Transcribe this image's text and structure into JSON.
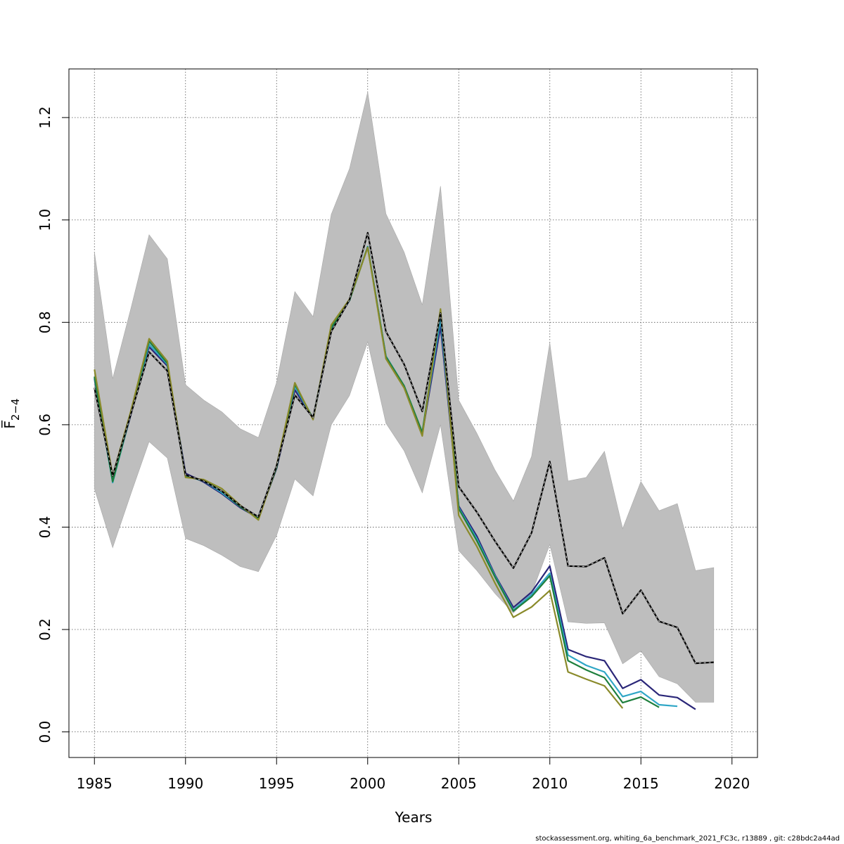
{
  "chart_data": {
    "type": "line",
    "xlabel": "Years",
    "ylabel": "F̅",
    "ylabel_subscript": "2−4",
    "xlim": [
      1983.6,
      2021.4
    ],
    "ylim": [
      -0.05,
      1.295
    ],
    "xticks": [
      1985,
      1990,
      1995,
      2000,
      2005,
      2010,
      2015,
      2020
    ],
    "yticks": [
      0.0,
      0.2,
      0.4,
      0.6,
      0.8,
      1.0,
      1.2
    ],
    "ytick_labels": [
      "0.0",
      "0.2",
      "0.4",
      "0.6",
      "0.8",
      "1.0",
      "1.2"
    ],
    "grid": true,
    "band": {
      "color": "#bebebe",
      "x": [
        1985,
        1986,
        1987,
        1988,
        1989,
        1990,
        1991,
        1992,
        1993,
        1994,
        1995,
        1996,
        1997,
        1998,
        1999,
        2000,
        2001,
        2002,
        2003,
        2004,
        2005,
        2006,
        2007,
        2008,
        2009,
        2010,
        2011,
        2012,
        2013,
        2014,
        2015,
        2016,
        2017,
        2018,
        2019
      ],
      "lower": [
        0.475,
        0.36,
        0.465,
        0.567,
        0.535,
        0.378,
        0.364,
        0.345,
        0.323,
        0.313,
        0.384,
        0.494,
        0.461,
        0.6,
        0.657,
        0.762,
        0.603,
        0.549,
        0.467,
        0.6,
        0.354,
        0.315,
        0.27,
        0.232,
        0.27,
        0.366,
        0.215,
        0.212,
        0.213,
        0.133,
        0.158,
        0.108,
        0.094,
        0.058,
        0.058
      ],
      "upper": [
        0.937,
        0.69,
        0.827,
        0.971,
        0.924,
        0.678,
        0.648,
        0.625,
        0.592,
        0.575,
        0.683,
        0.86,
        0.811,
        1.011,
        1.1,
        1.25,
        1.012,
        0.937,
        0.834,
        1.066,
        0.648,
        0.583,
        0.511,
        0.451,
        0.538,
        0.76,
        0.49,
        0.497,
        0.548,
        0.397,
        0.489,
        0.432,
        0.446,
        0.315,
        0.321
      ]
    },
    "series": [
      {
        "color": "#000000",
        "dashed": true,
        "x": [
          1985,
          1986,
          1987,
          1988,
          1989,
          1990,
          1991,
          1992,
          1993,
          1994,
          1995,
          1996,
          1997,
          1998,
          1999,
          2000,
          2001,
          2002,
          2003,
          2004,
          2005,
          2006,
          2007,
          2008,
          2009,
          2010,
          2011,
          2012,
          2013,
          2014,
          2015,
          2016,
          2017,
          2018,
          2019
        ],
        "values": [
          0.672,
          0.5,
          0.621,
          0.742,
          0.705,
          0.502,
          0.49,
          0.47,
          0.442,
          0.42,
          0.52,
          0.658,
          0.614,
          0.782,
          0.844,
          0.975,
          0.782,
          0.718,
          0.626,
          0.818,
          0.479,
          0.429,
          0.372,
          0.32,
          0.389,
          0.528,
          0.324,
          0.323,
          0.34,
          0.231,
          0.277,
          0.216,
          0.204,
          0.134,
          0.136
        ]
      },
      {
        "color": "#2a2678",
        "x": [
          1985,
          1986,
          1987,
          1988,
          1989,
          1990,
          1991,
          1992,
          1993,
          1994,
          1995,
          1996,
          1997,
          1998,
          1999,
          2000,
          2001,
          2002,
          2003,
          2004,
          2005,
          2006,
          2007,
          2008,
          2009,
          2010,
          2011,
          2012,
          2013,
          2014,
          2015,
          2016,
          2017,
          2018
        ],
        "values": [
          0.69,
          0.49,
          0.62,
          0.752,
          0.715,
          0.505,
          0.488,
          0.465,
          0.438,
          0.418,
          0.515,
          0.668,
          0.612,
          0.785,
          0.843,
          0.948,
          0.733,
          0.675,
          0.582,
          0.792,
          0.441,
          0.382,
          0.306,
          0.243,
          0.273,
          0.324,
          0.161,
          0.147,
          0.139,
          0.085,
          0.102,
          0.072,
          0.067,
          0.044
        ]
      },
      {
        "color": "#2fa6c6",
        "x": [
          1985,
          1986,
          1987,
          1988,
          1989,
          1990,
          1991,
          1992,
          1993,
          1994,
          1995,
          1996,
          1997,
          1998,
          1999,
          2000,
          2001,
          2002,
          2003,
          2004,
          2005,
          2006,
          2007,
          2008,
          2009,
          2010,
          2011,
          2012,
          2013,
          2014,
          2015,
          2016,
          2017
        ],
        "values": [
          0.692,
          0.487,
          0.622,
          0.757,
          0.718,
          0.5,
          0.49,
          0.467,
          0.44,
          0.42,
          0.518,
          0.675,
          0.612,
          0.787,
          0.843,
          0.948,
          0.734,
          0.676,
          0.584,
          0.808,
          0.438,
          0.377,
          0.304,
          0.238,
          0.268,
          0.31,
          0.15,
          0.13,
          0.117,
          0.069,
          0.079,
          0.053,
          0.05
        ]
      },
      {
        "color": "#1e7f3d",
        "x": [
          1985,
          1986,
          1987,
          1988,
          1989,
          1990,
          1991,
          1992,
          1993,
          1994,
          1995,
          1996,
          1997,
          1998,
          1999,
          2000,
          2001,
          2002,
          2003,
          2004,
          2005,
          2006,
          2007,
          2008,
          2009,
          2010,
          2011,
          2012,
          2013,
          2014,
          2015,
          2016
        ],
        "values": [
          0.694,
          0.489,
          0.623,
          0.763,
          0.72,
          0.498,
          0.492,
          0.47,
          0.44,
          0.417,
          0.517,
          0.679,
          0.612,
          0.79,
          0.843,
          0.947,
          0.733,
          0.676,
          0.585,
          0.822,
          0.436,
          0.373,
          0.302,
          0.236,
          0.264,
          0.305,
          0.139,
          0.121,
          0.106,
          0.057,
          0.068,
          0.048
        ]
      },
      {
        "color": "#8a8a2a",
        "x": [
          1985,
          1986,
          1987,
          1988,
          1989,
          1990,
          1991,
          1992,
          1993,
          1994,
          1995,
          1996,
          1997,
          1998,
          1999,
          2000,
          2001,
          2002,
          2003,
          2004,
          2005,
          2006,
          2007,
          2008,
          2009,
          2010,
          2011,
          2012,
          2013,
          2014
        ],
        "values": [
          0.708,
          0.5,
          0.627,
          0.768,
          0.724,
          0.497,
          0.493,
          0.475,
          0.443,
          0.414,
          0.52,
          0.682,
          0.61,
          0.795,
          0.845,
          0.946,
          0.729,
          0.672,
          0.578,
          0.826,
          0.423,
          0.362,
          0.29,
          0.224,
          0.244,
          0.276,
          0.117,
          0.103,
          0.09,
          0.046
        ]
      }
    ]
  },
  "footer": "stockassessment.org, whiting_6a_benchmark_2021_FC3c, r13889 , git: c28bdc2a44ad"
}
